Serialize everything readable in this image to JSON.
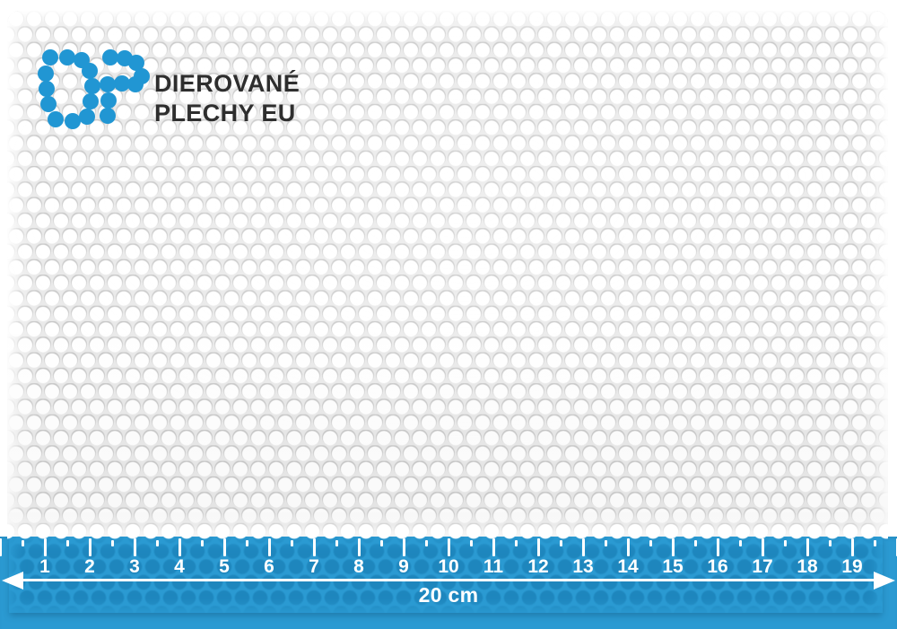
{
  "brand": {
    "logo_name": "dp-dot-logo",
    "line1": "DIEROVANÉ",
    "line2": "PLECHY EU"
  },
  "ruler": {
    "numbers": [
      "1",
      "2",
      "3",
      "4",
      "5",
      "6",
      "7",
      "8",
      "9",
      "10",
      "11",
      "12",
      "13",
      "14",
      "15",
      "16",
      "17",
      "18",
      "19"
    ],
    "unit_label": "20 cm",
    "major_tick_count": 21,
    "minor_tick_count": 20
  },
  "colors": {
    "accent_blue": "#2196d3",
    "ruler_blue": "#2b9ad2",
    "ruler_dot_blue": "#1e86bd",
    "sheet_gray": "#eaeaea",
    "hole_white": "#ffffff",
    "text_dark": "#2e2e2e",
    "tick_white": "#ffffff"
  }
}
